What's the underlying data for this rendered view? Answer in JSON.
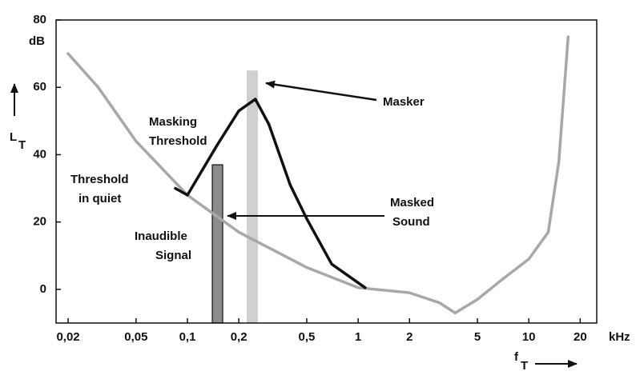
{
  "chart_data": {
    "type": "line",
    "xscale": "log",
    "xlim": [
      0.017,
      25
    ],
    "ylim": [
      -10,
      80
    ],
    "xticks": [
      {
        "value": 0.02,
        "label": "0,02"
      },
      {
        "value": 0.05,
        "label": "0,05"
      },
      {
        "value": 0.1,
        "label": "0,1"
      },
      {
        "value": 0.2,
        "label": "0,2"
      },
      {
        "value": 0.5,
        "label": "0,5"
      },
      1,
      2,
      5,
      10,
      20
    ],
    "yticks": [
      0,
      20,
      40,
      60,
      80
    ],
    "y_unit": "dB",
    "x_unit": "kHz",
    "y_label": {
      "main": "L",
      "sub": "T"
    },
    "x_label": {
      "main": "f",
      "sub": "T"
    },
    "grid": false,
    "series": [
      {
        "color": "#a8a8a8",
        "x": [
          0.02,
          0.03,
          0.05,
          0.1,
          0.2,
          0.5,
          1,
          2,
          3,
          3.7,
          5,
          7,
          10,
          13,
          15,
          17
        ],
        "values": [
          70,
          60,
          44,
          28,
          17,
          6.5,
          0.5,
          -1,
          -4,
          -7,
          -3,
          3,
          9,
          17,
          38,
          75
        ]
      },
      {
        "color": "#111111",
        "x": [
          0.085,
          0.1,
          0.15,
          0.2,
          0.25,
          0.3,
          0.4,
          0.5,
          0.7,
          1.1
        ],
        "values": [
          30,
          28,
          43,
          53,
          56.5,
          49,
          31,
          21,
          7.5,
          0.5
        ]
      }
    ],
    "bars": [
      {
        "x": 0.24,
        "value": 65,
        "color": "#d0d0d0"
      },
      {
        "x": 0.15,
        "value": 37,
        "color": "#8c8c8c"
      }
    ],
    "annotations": [
      [
        "Masker"
      ],
      [
        "Masked",
        "Sound"
      ],
      [
        "Masking",
        "Threshold"
      ],
      [
        "Threshold",
        "in quiet"
      ],
      [
        "Inaudible",
        "Signal"
      ]
    ]
  }
}
